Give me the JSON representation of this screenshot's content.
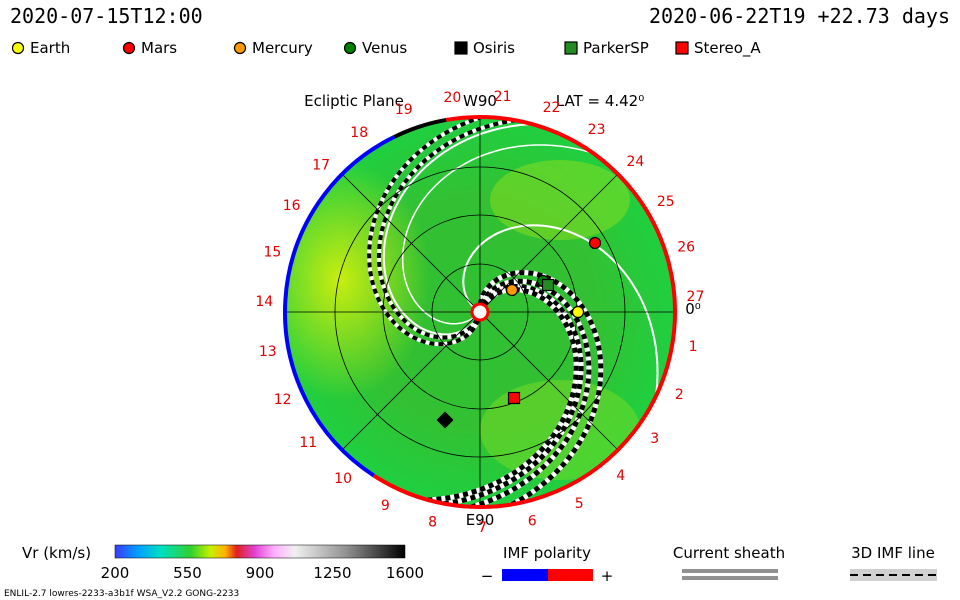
{
  "header": {
    "left": "2020-07-15T12:00",
    "right": "2020-06-22T19 +22.73 days"
  },
  "legend": [
    {
      "label": "Earth",
      "color": "#ffff00",
      "shape": "circle"
    },
    {
      "label": "Mars",
      "color": "#ff0000",
      "shape": "circle"
    },
    {
      "label": "Mercury",
      "color": "#ff9900",
      "shape": "circle"
    },
    {
      "label": "Venus",
      "color": "#008000",
      "shape": "circle"
    },
    {
      "label": "Osiris",
      "color": "#000000",
      "shape": "square"
    },
    {
      "label": "ParkerSP",
      "color": "#228b22",
      "shape": "square"
    },
    {
      "label": "Stereo_A",
      "color": "#ff0000",
      "shape": "square"
    }
  ],
  "plot": {
    "title": "Ecliptic Plane",
    "top_label": "W90",
    "bottom_label": "E90",
    "right_label": "0⁰",
    "lat": "LAT = 4.42⁰",
    "longitude_labels": [
      "1",
      "2",
      "3",
      "4",
      "5",
      "6",
      "7",
      "8",
      "9",
      "10",
      "11",
      "12",
      "13",
      "14",
      "15",
      "16",
      "17",
      "18",
      "19",
      "20",
      "21",
      "22",
      "23",
      "24",
      "25",
      "26",
      "27"
    ]
  },
  "colorbar": {
    "label": "Vr (km/s)",
    "ticks": [
      200,
      550,
      900,
      1250,
      1600
    ]
  },
  "imf_polarity": {
    "label": "IMF polarity",
    "minus": "−",
    "plus": "+"
  },
  "current_sheath": {
    "label": "Current sheath"
  },
  "imf_line": {
    "label": "3D IMF line"
  },
  "footer": "ENLIL-2.7 lowres-2233-a3b1f WSA_V2.2 GONG-2233"
}
